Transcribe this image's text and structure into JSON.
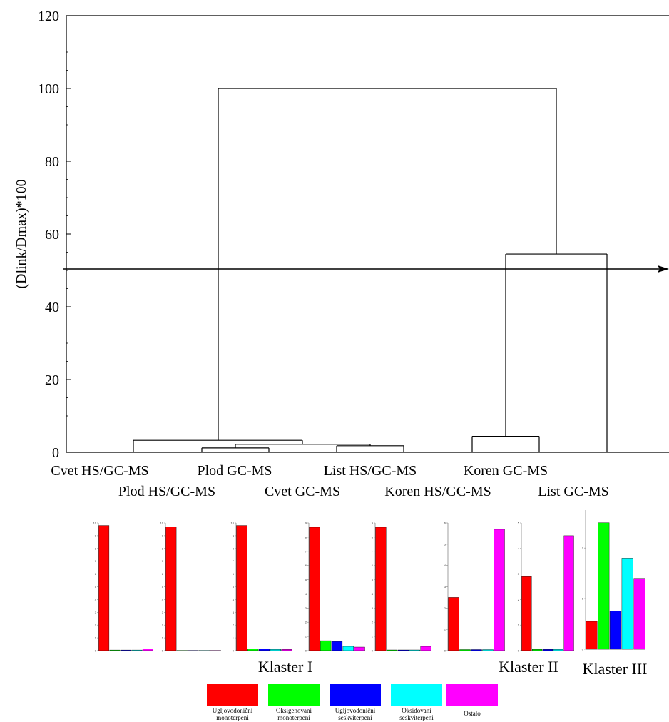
{
  "chart_data": [
    {
      "type": "dendrogram",
      "ylabel": "(Dlink/Dmax)*100",
      "ylim": [
        0,
        120
      ],
      "yticks": [
        0,
        20,
        40,
        60,
        80,
        100,
        120
      ],
      "cut_line": 50,
      "leaves": [
        {
          "label": "Cvet  HS/GC-MS",
          "row": 1
        },
        {
          "label": "Plod HS/GC-MS",
          "row": 2
        },
        {
          "label": "Plod  GC-MS",
          "row": 1
        },
        {
          "label": "Cvet  GC-MS",
          "row": 2
        },
        {
          "label": "List HS/GC-MS",
          "row": 1
        },
        {
          "label": "Koren HS/GC-MS",
          "row": 2
        },
        {
          "label": "Koren GC-MS",
          "row": 1
        },
        {
          "label": "List GC-MS",
          "row": 2
        }
      ],
      "merges": [
        {
          "height": 1.2,
          "left": "Plod HS/GC-MS",
          "right": "Plod  GC-MS"
        },
        {
          "height": 1.8,
          "left": "List HS/GC-MS",
          "right": "Koren HS/GC-MS"
        },
        {
          "height": 2.2,
          "left": "Plod cluster",
          "right": "Cvet  GC-MS + List/Koren cluster"
        },
        {
          "height": 3.3,
          "left": "Cvet  HS/GC-MS",
          "right": "Plod/Cvet/List/Koren cluster"
        },
        {
          "height": 4.4,
          "left": "Koren GC-MS",
          "right": "List GC-MS"
        },
        {
          "height": 54.5,
          "left": "Koren/List GC-MS cluster",
          "right": "single"
        },
        {
          "height": 100,
          "left": "Klaster I",
          "right": "Klaster II + III"
        }
      ]
    },
    {
      "type": "bar",
      "categories": [
        "Ugljovodonični monoterpeni",
        "Oksigenovani monoterpeni",
        "Ugljovodonični seskviterpeni",
        "Oksidovani seskviterpeni",
        "Ostalo"
      ],
      "colors": [
        "#ff0000",
        "#00ff00",
        "#0000ff",
        "#00ffff",
        "#ff00ff"
      ],
      "panels": [
        {
          "group": "Klaster I",
          "ymax": 10,
          "values": [
            9.8,
            0.05,
            0.05,
            0.05,
            0.15
          ]
        },
        {
          "group": "Klaster I",
          "ymax": 10,
          "values": [
            9.7,
            0.02,
            0.02,
            0.02,
            0.02
          ]
        },
        {
          "group": "Klaster I",
          "ymax": 10,
          "values": [
            9.8,
            0.15,
            0.15,
            0.1,
            0.1
          ]
        },
        {
          "group": "Klaster I",
          "ymax": 9,
          "values": [
            8.7,
            0.7,
            0.65,
            0.3,
            0.25
          ]
        },
        {
          "group": "Klaster I",
          "ymax": 9,
          "values": [
            8.7,
            0.05,
            0.05,
            0.05,
            0.3
          ]
        },
        {
          "group": "Klaster II",
          "ymax": 6,
          "values": [
            2.5,
            0.05,
            0.05,
            0.05,
            5.7
          ]
        },
        {
          "group": "Klaster II",
          "ymax": 5,
          "values": [
            2.9,
            0.05,
            0.05,
            0.05,
            4.5
          ]
        },
        {
          "group": "Klaster III",
          "ymax": 2.75,
          "values": [
            0.55,
            2.5,
            0.75,
            1.8,
            1.4
          ]
        }
      ],
      "group_labels": [
        "Klaster I",
        "Klaster II",
        "Klaster III"
      ],
      "legend": [
        {
          "line1": "Ugljovodonični",
          "line2": "monoterpeni"
        },
        {
          "line1": "Oksigenovani",
          "line2": "monoterpeni"
        },
        {
          "line1": "Ugljovodonični",
          "line2": "seskviterpeni"
        },
        {
          "line1": "Oksidovani",
          "line2": "seskviterpeni"
        },
        {
          "line1": "Ostalo",
          "line2": ""
        }
      ]
    }
  ]
}
